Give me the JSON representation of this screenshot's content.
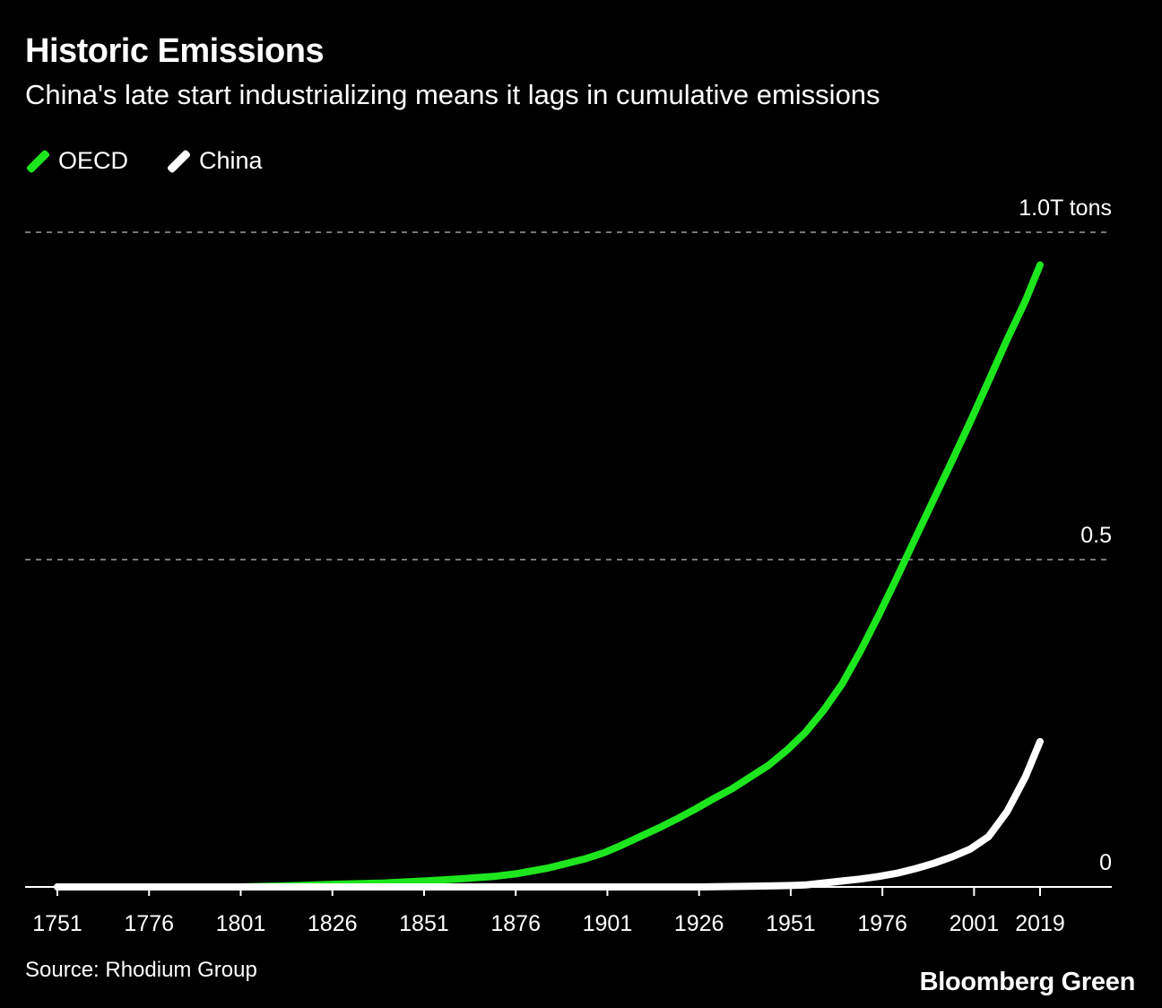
{
  "chart_data": {
    "type": "line",
    "title": "Historic Emissions",
    "subtitle": "China's late start industrializing means it lags in cumulative emissions",
    "xlabel": "",
    "ylabel": "",
    "xlim": [
      1746,
      2039
    ],
    "ylim": [
      0,
      1.0
    ],
    "x_ticks": [
      1751,
      1776,
      1801,
      1826,
      1851,
      1876,
      1901,
      1926,
      1951,
      1976,
      2001,
      2019
    ],
    "y_ticks": [
      {
        "value": 0,
        "label": "0"
      },
      {
        "value": 0.5,
        "label": "0.5"
      },
      {
        "value": 1.0,
        "label": "1.0T tons"
      }
    ],
    "grid": "horizontal dashed",
    "legend_position": "top-left",
    "series": [
      {
        "name": "OECD",
        "color": "#1ee61e",
        "x": [
          1751,
          1776,
          1801,
          1816,
          1826,
          1840,
          1851,
          1860,
          1870,
          1876,
          1880,
          1885,
          1890,
          1895,
          1900,
          1905,
          1910,
          1915,
          1920,
          1925,
          1930,
          1935,
          1940,
          1945,
          1950,
          1955,
          1960,
          1965,
          1970,
          1975,
          1980,
          1985,
          1990,
          1995,
          2000,
          2005,
          2010,
          2015,
          2019
        ],
        "values": [
          0,
          0,
          0,
          0.002,
          0.004,
          0.006,
          0.009,
          0.012,
          0.016,
          0.02,
          0.024,
          0.029,
          0.036,
          0.043,
          0.052,
          0.064,
          0.077,
          0.09,
          0.104,
          0.119,
          0.135,
          0.15,
          0.168,
          0.186,
          0.209,
          0.236,
          0.27,
          0.31,
          0.36,
          0.415,
          0.473,
          0.533,
          0.592,
          0.651,
          0.711,
          0.773,
          0.836,
          0.895,
          0.95
        ]
      },
      {
        "name": "China",
        "color": "#ffffff",
        "x": [
          1751,
          1776,
          1801,
          1826,
          1851,
          1876,
          1901,
          1926,
          1940,
          1950,
          1955,
          1960,
          1965,
          1970,
          1975,
          1980,
          1985,
          1990,
          1995,
          2000,
          2005,
          2010,
          2015,
          2019
        ],
        "values": [
          0,
          0,
          0,
          0,
          0,
          0,
          0,
          0,
          0.001,
          0.002,
          0.003,
          0.006,
          0.009,
          0.012,
          0.016,
          0.021,
          0.028,
          0.036,
          0.046,
          0.058,
          0.077,
          0.115,
          0.168,
          0.222
        ]
      }
    ],
    "source": "Source: Rhodium Group",
    "brand": "Bloomberg Green"
  },
  "style": {
    "background": "#000000",
    "text": "#ffffff",
    "grid": "#777777"
  }
}
